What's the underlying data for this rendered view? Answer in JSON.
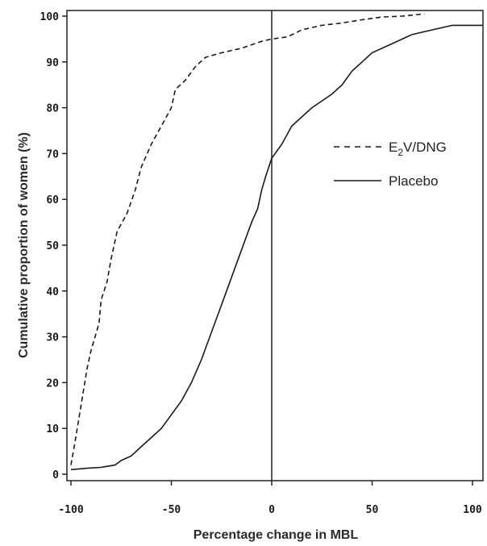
{
  "chart_data": {
    "type": "line",
    "title": "",
    "xlabel": "Percentage change in MBL",
    "ylabel": "Cumulative proportion of women (%)",
    "xlim": [
      -100,
      105
    ],
    "ylim": [
      0,
      102
    ],
    "x_ticks": [
      -100,
      -50,
      0,
      50,
      100
    ],
    "y_ticks": [
      0,
      10,
      20,
      30,
      40,
      50,
      60,
      70,
      80,
      90,
      100
    ],
    "x_tick_labels": [
      "-100",
      "-50",
      "0",
      "50",
      "100"
    ],
    "y_tick_labels": [
      "0",
      "10",
      "20",
      "30",
      "40",
      "50",
      "60",
      "70",
      "80",
      "90",
      "100"
    ],
    "reference_line_x": 0,
    "grid": false,
    "legend_position": "right-middle",
    "series": [
      {
        "name": "E2V/DNG",
        "legend_main": "E",
        "legend_sub": "2",
        "legend_rest": "V/DNG",
        "style": "dashed",
        "color": "#1a1a1a",
        "points": [
          [
            -100,
            2
          ],
          [
            -98,
            7
          ],
          [
            -95,
            15
          ],
          [
            -92,
            23
          ],
          [
            -90,
            27
          ],
          [
            -88,
            30
          ],
          [
            -86,
            33
          ],
          [
            -85,
            38
          ],
          [
            -82,
            42
          ],
          [
            -80,
            47
          ],
          [
            -77,
            53
          ],
          [
            -72,
            57
          ],
          [
            -68,
            62
          ],
          [
            -65,
            67
          ],
          [
            -60,
            72
          ],
          [
            -55,
            76
          ],
          [
            -50,
            80
          ],
          [
            -48,
            84
          ],
          [
            -43,
            86
          ],
          [
            -38,
            89
          ],
          [
            -33,
            91
          ],
          [
            -25,
            92
          ],
          [
            -15,
            93
          ],
          [
            -5,
            94.5
          ],
          [
            0,
            95
          ],
          [
            8,
            95.5
          ],
          [
            15,
            97
          ],
          [
            25,
            98
          ],
          [
            35,
            98.5
          ],
          [
            45,
            99.2
          ],
          [
            55,
            99.8
          ],
          [
            65,
            100
          ],
          [
            76,
            100.5
          ]
        ]
      },
      {
        "name": "Placebo",
        "style": "solid",
        "color": "#1a1a1a",
        "points": [
          [
            -100,
            1
          ],
          [
            -92,
            1.3
          ],
          [
            -85,
            1.5
          ],
          [
            -78,
            2
          ],
          [
            -75,
            3
          ],
          [
            -70,
            4
          ],
          [
            -65,
            6
          ],
          [
            -60,
            8
          ],
          [
            -55,
            10
          ],
          [
            -50,
            13
          ],
          [
            -45,
            16
          ],
          [
            -40,
            20
          ],
          [
            -35,
            25
          ],
          [
            -30,
            31
          ],
          [
            -25,
            37
          ],
          [
            -20,
            43
          ],
          [
            -15,
            49
          ],
          [
            -10,
            55
          ],
          [
            -7,
            58
          ],
          [
            -5,
            62
          ],
          [
            -3,
            65
          ],
          [
            0,
            69
          ],
          [
            5,
            72
          ],
          [
            10,
            76
          ],
          [
            15,
            78
          ],
          [
            20,
            80
          ],
          [
            25,
            81.5
          ],
          [
            30,
            83
          ],
          [
            35,
            85
          ],
          [
            40,
            88
          ],
          [
            45,
            90
          ],
          [
            50,
            92
          ],
          [
            60,
            94
          ],
          [
            70,
            96
          ],
          [
            80,
            97
          ],
          [
            90,
            98
          ],
          [
            105,
            98
          ]
        ]
      }
    ]
  }
}
